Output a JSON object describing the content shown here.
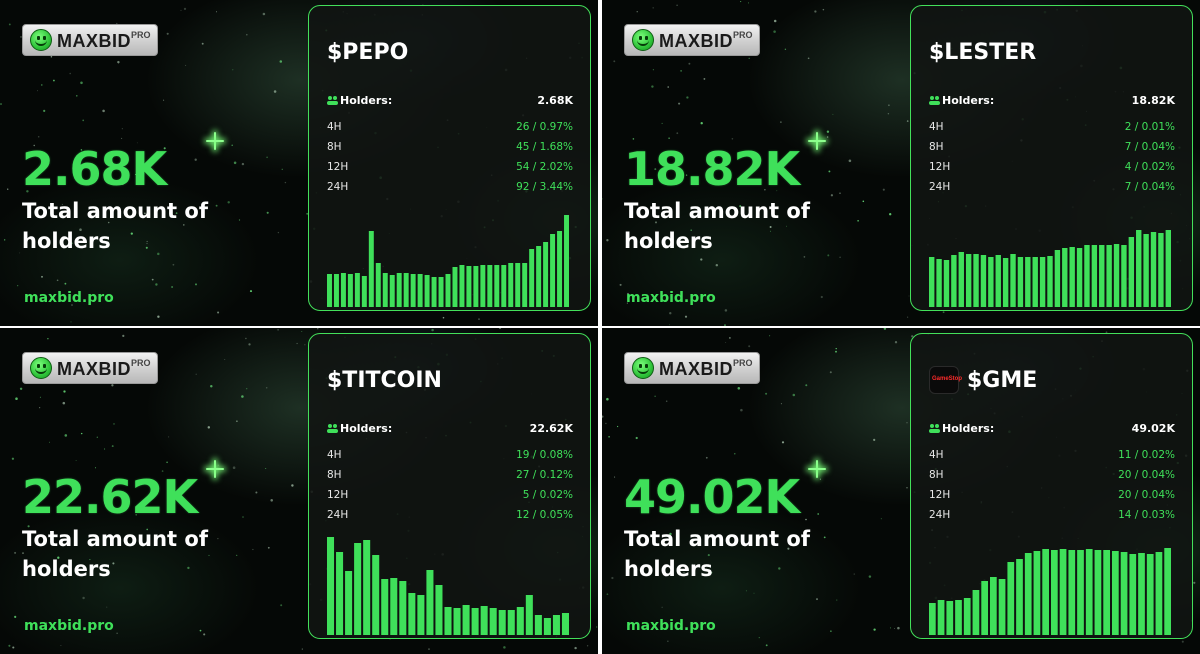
{
  "brand": {
    "logo_text": "MAXBID",
    "logo_sup": "PRO",
    "site": "maxbid.pro",
    "accent": "#3fe05a"
  },
  "caption": "Total amount of holders",
  "holders_label": "Holders:",
  "tiles": [
    {
      "token": "$PEPO",
      "big_number": "2.68K",
      "holders": "2.68K",
      "stats": [
        {
          "period": "4H",
          "value": "26 / 0.97%"
        },
        {
          "period": "8H",
          "value": "45 / 1.68%"
        },
        {
          "period": "12H",
          "value": "54 / 2.02%"
        },
        {
          "period": "24H",
          "value": "92 / 3.44%"
        }
      ],
      "bars": [
        0.33,
        0.33,
        0.34,
        0.33,
        0.34,
        0.31,
        0.76,
        0.44,
        0.34,
        0.32,
        0.34,
        0.34,
        0.33,
        0.33,
        0.32,
        0.3,
        0.3,
        0.33,
        0.4,
        0.42,
        0.41,
        0.41,
        0.42,
        0.42,
        0.42,
        0.42,
        0.44,
        0.44,
        0.44,
        0.58,
        0.61,
        0.65,
        0.73,
        0.76,
        0.92
      ]
    },
    {
      "token": "$LESTER",
      "big_number": "18.82K",
      "holders": "18.82K",
      "stats": [
        {
          "period": "4H",
          "value": "2 / 0.01%"
        },
        {
          "period": "8H",
          "value": "7 / 0.04%"
        },
        {
          "period": "12H",
          "value": "4 / 0.02%"
        },
        {
          "period": "24H",
          "value": "7 / 0.04%"
        }
      ],
      "bars": [
        0.5,
        0.48,
        0.47,
        0.52,
        0.55,
        0.53,
        0.53,
        0.52,
        0.5,
        0.52,
        0.49,
        0.53,
        0.5,
        0.5,
        0.5,
        0.5,
        0.51,
        0.57,
        0.59,
        0.6,
        0.59,
        0.62,
        0.62,
        0.62,
        0.62,
        0.63,
        0.62,
        0.7,
        0.77,
        0.73,
        0.75,
        0.74,
        0.77
      ]
    },
    {
      "token": "$TITCOIN",
      "big_number": "22.62K",
      "holders": "22.62K",
      "stats": [
        {
          "period": "4H",
          "value": "19 / 0.08%"
        },
        {
          "period": "8H",
          "value": "27 / 0.12%"
        },
        {
          "period": "12H",
          "value": "5 / 0.02%"
        },
        {
          "period": "24H",
          "value": "12 / 0.05%"
        }
      ],
      "bars": [
        0.98,
        0.83,
        0.64,
        0.92,
        0.95,
        0.8,
        0.56,
        0.57,
        0.54,
        0.42,
        0.4,
        0.65,
        0.5,
        0.28,
        0.27,
        0.3,
        0.27,
        0.29,
        0.27,
        0.25,
        0.25,
        0.28,
        0.4,
        0.2,
        0.17,
        0.2,
        0.22
      ]
    },
    {
      "token": "$GME",
      "token_logo_text": "GameStop",
      "big_number": "49.02K",
      "holders": "49.02K",
      "stats": [
        {
          "period": "4H",
          "value": "11 / 0.02%"
        },
        {
          "period": "8H",
          "value": "20 / 0.04%"
        },
        {
          "period": "12H",
          "value": "20 / 0.04%"
        },
        {
          "period": "24H",
          "value": "14 / 0.03%"
        }
      ],
      "bars": [
        0.32,
        0.35,
        0.34,
        0.35,
        0.37,
        0.45,
        0.54,
        0.58,
        0.56,
        0.73,
        0.76,
        0.82,
        0.84,
        0.86,
        0.85,
        0.86,
        0.85,
        0.85,
        0.86,
        0.85,
        0.85,
        0.84,
        0.83,
        0.81,
        0.82,
        0.81,
        0.83,
        0.87
      ]
    }
  ]
}
